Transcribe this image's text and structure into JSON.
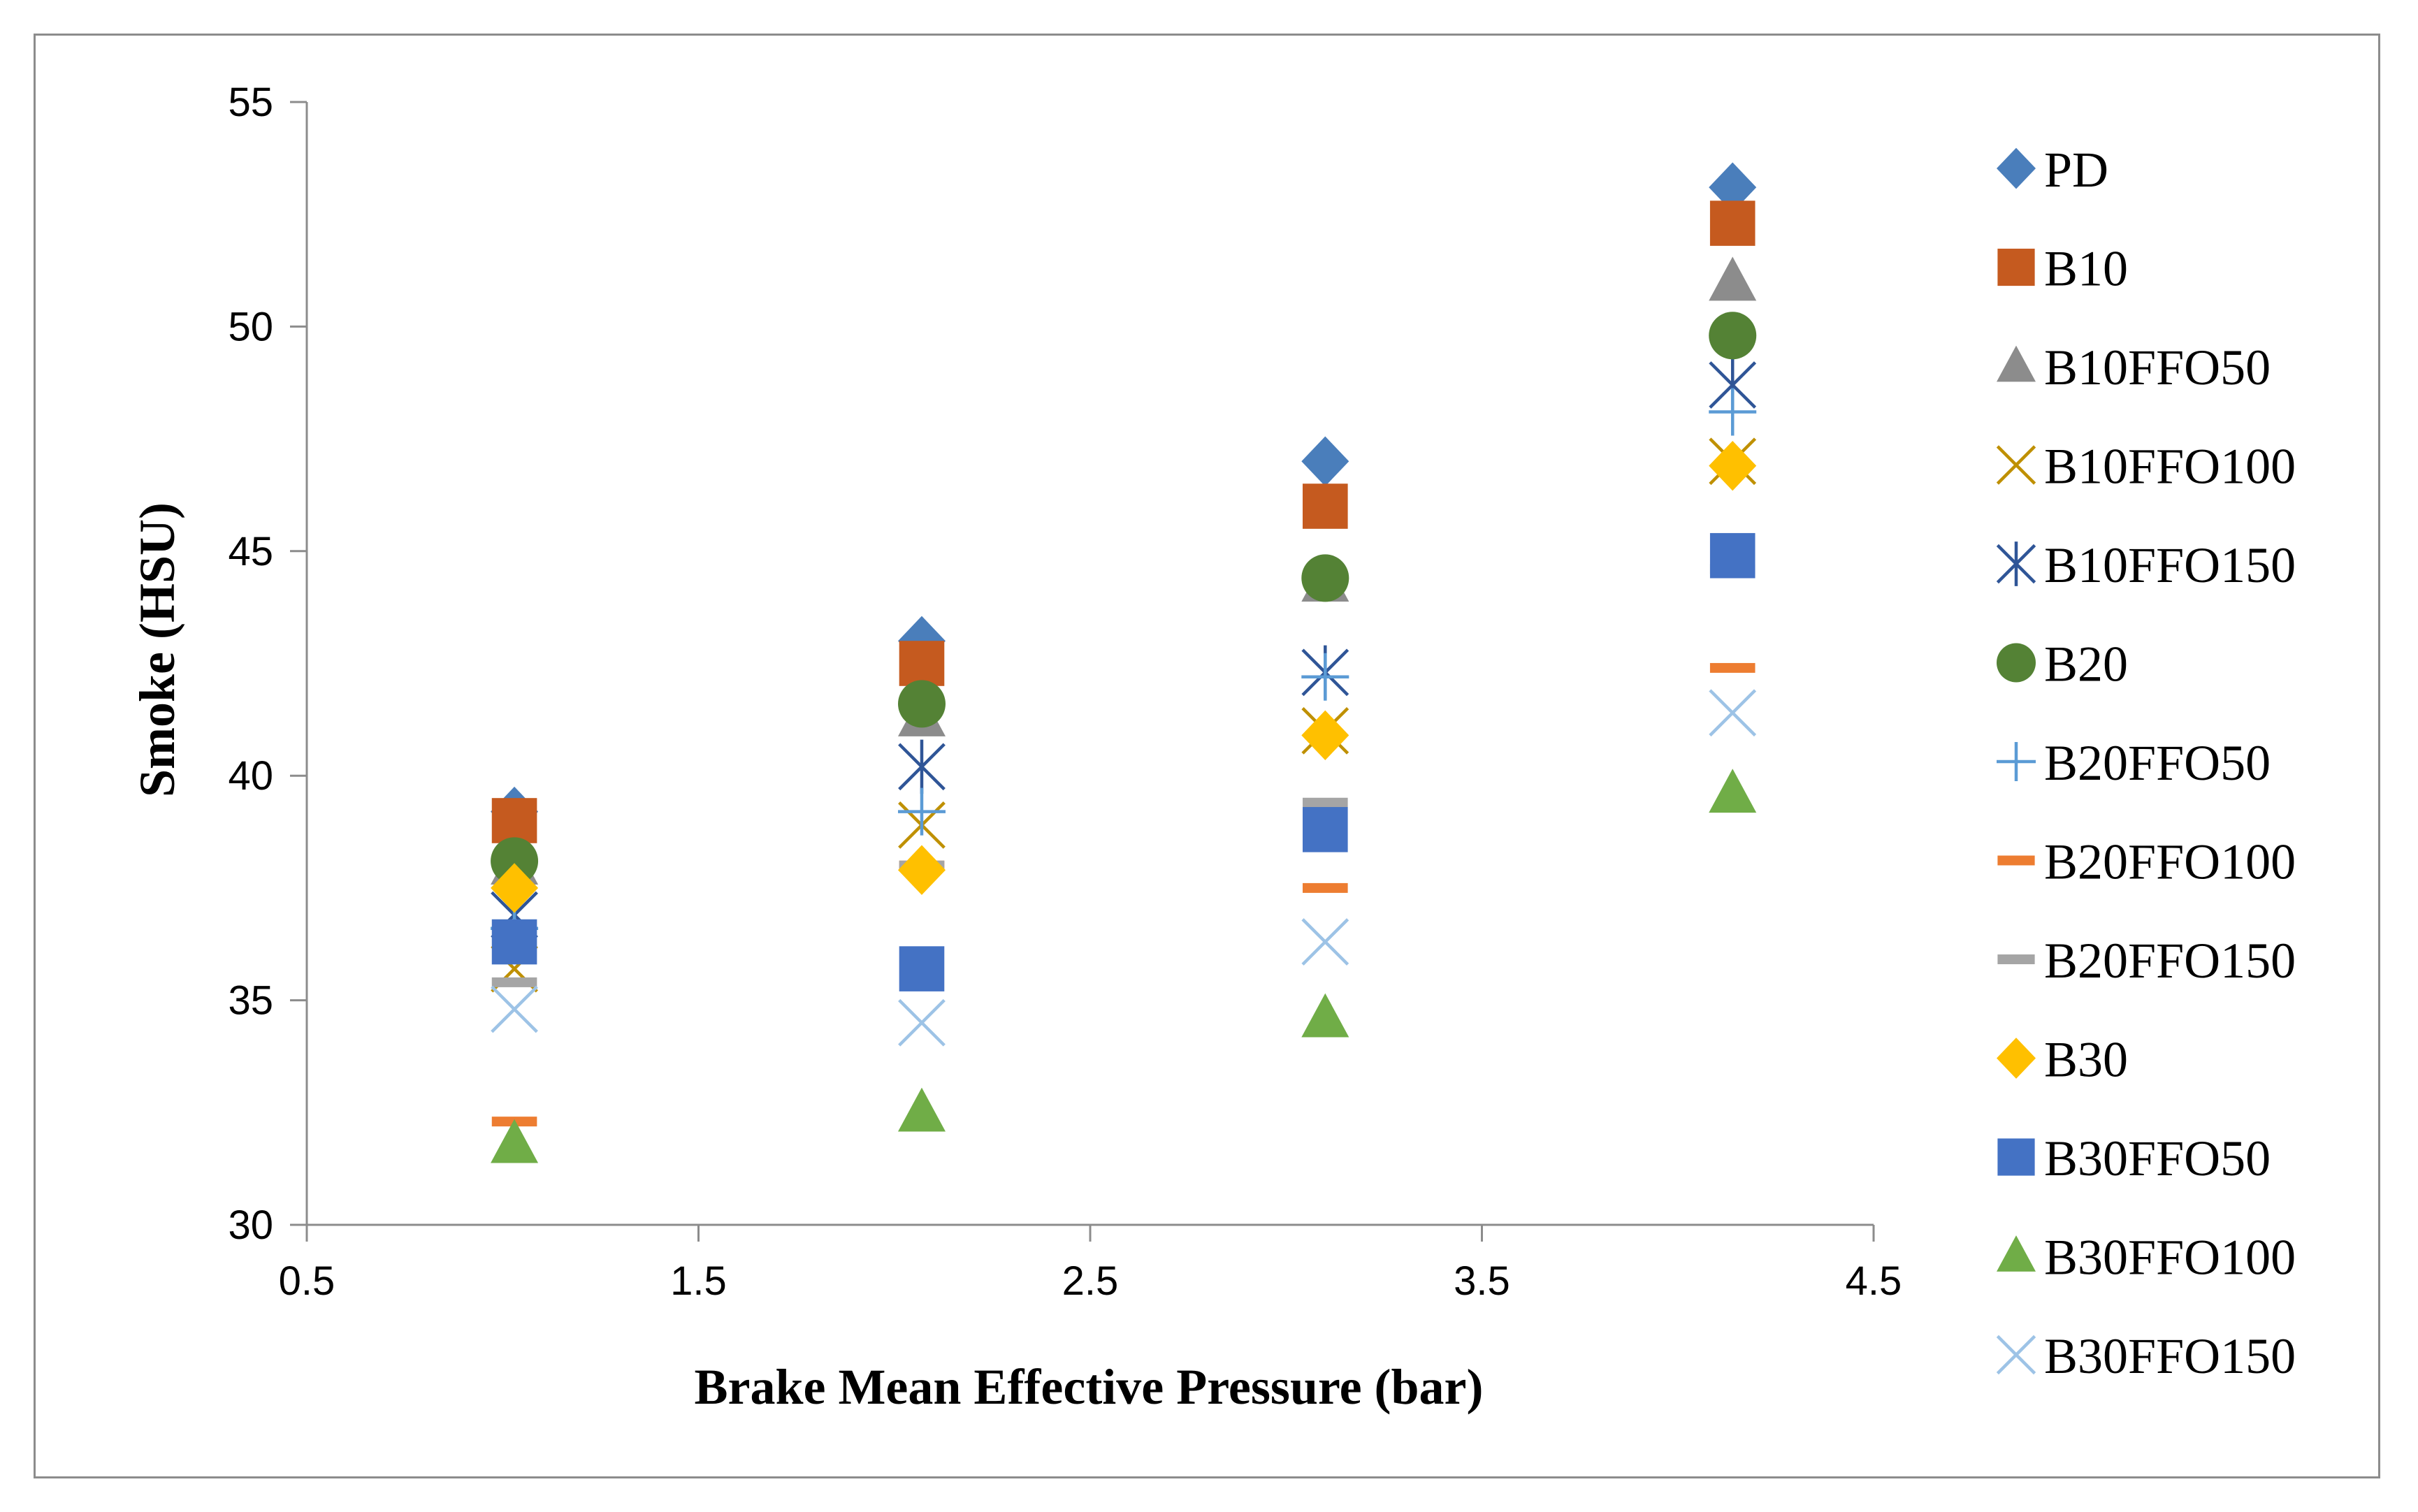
{
  "chart_data": {
    "type": "scatter",
    "title": "",
    "xlabel": "Brake Mean Effective Pressure (bar)",
    "ylabel": "Smoke (HSU)",
    "xlim": [
      0.5,
      4.5
    ],
    "ylim": [
      30,
      55
    ],
    "xticks": [
      "0.5",
      "1.5",
      "2.5",
      "3.5",
      "4.5"
    ],
    "yticks": [
      "30",
      "35",
      "40",
      "45",
      "50",
      "55"
    ],
    "grid": false,
    "legend_position": "right",
    "x": [
      1.03,
      2.07,
      3.1,
      4.14
    ],
    "series": [
      {
        "name": "PD",
        "marker": "diamond",
        "color": "#4a7ebb",
        "values": [
          39.2,
          43.0,
          47.0,
          53.1
        ]
      },
      {
        "name": "B10",
        "marker": "square",
        "color": "#c55a1f",
        "values": [
          39.0,
          42.5,
          46.0,
          52.3
        ]
      },
      {
        "name": "B10FFO50",
        "marker": "triangle",
        "color": "#8c8c8c",
        "values": [
          38.0,
          41.3,
          44.3,
          51.0
        ]
      },
      {
        "name": "B10FFO100",
        "marker": "x",
        "color": "#bf9000",
        "values": [
          35.7,
          38.9,
          41.0,
          47.0
        ]
      },
      {
        "name": "B10FFO150",
        "marker": "star",
        "color": "#2f5597",
        "values": [
          36.9,
          40.2,
          42.3,
          48.7
        ]
      },
      {
        "name": "B20",
        "marker": "circle",
        "color": "#548235",
        "values": [
          38.1,
          41.6,
          44.4,
          49.8
        ]
      },
      {
        "name": "B20FFO50",
        "marker": "plus",
        "color": "#5b9bd5",
        "values": [
          36.6,
          39.2,
          42.2,
          48.1
        ]
      },
      {
        "name": "B20FFO100",
        "marker": "dash",
        "color": "#ed7d31",
        "values": [
          32.3,
          38.0,
          37.5,
          42.4
        ]
      },
      {
        "name": "B20FFO150",
        "marker": "dash",
        "color": "#a5a5a5",
        "values": [
          35.4,
          38.0,
          39.4,
          44.6
        ]
      },
      {
        "name": "B30",
        "marker": "diamond",
        "color": "#ffc000",
        "values": [
          37.5,
          37.9,
          40.9,
          46.9
        ]
      },
      {
        "name": "B30FFO50",
        "marker": "square",
        "color": "#4472c4",
        "values": [
          36.3,
          35.7,
          38.8,
          44.9
        ]
      },
      {
        "name": "B30FFO100",
        "marker": "triangle",
        "color": "#70ad47",
        "values": [
          31.8,
          32.5,
          34.6,
          39.6
        ]
      },
      {
        "name": "B30FFO150",
        "marker": "x",
        "color": "#9dc3e6",
        "values": [
          34.8,
          34.5,
          36.3,
          41.4
        ]
      }
    ]
  }
}
